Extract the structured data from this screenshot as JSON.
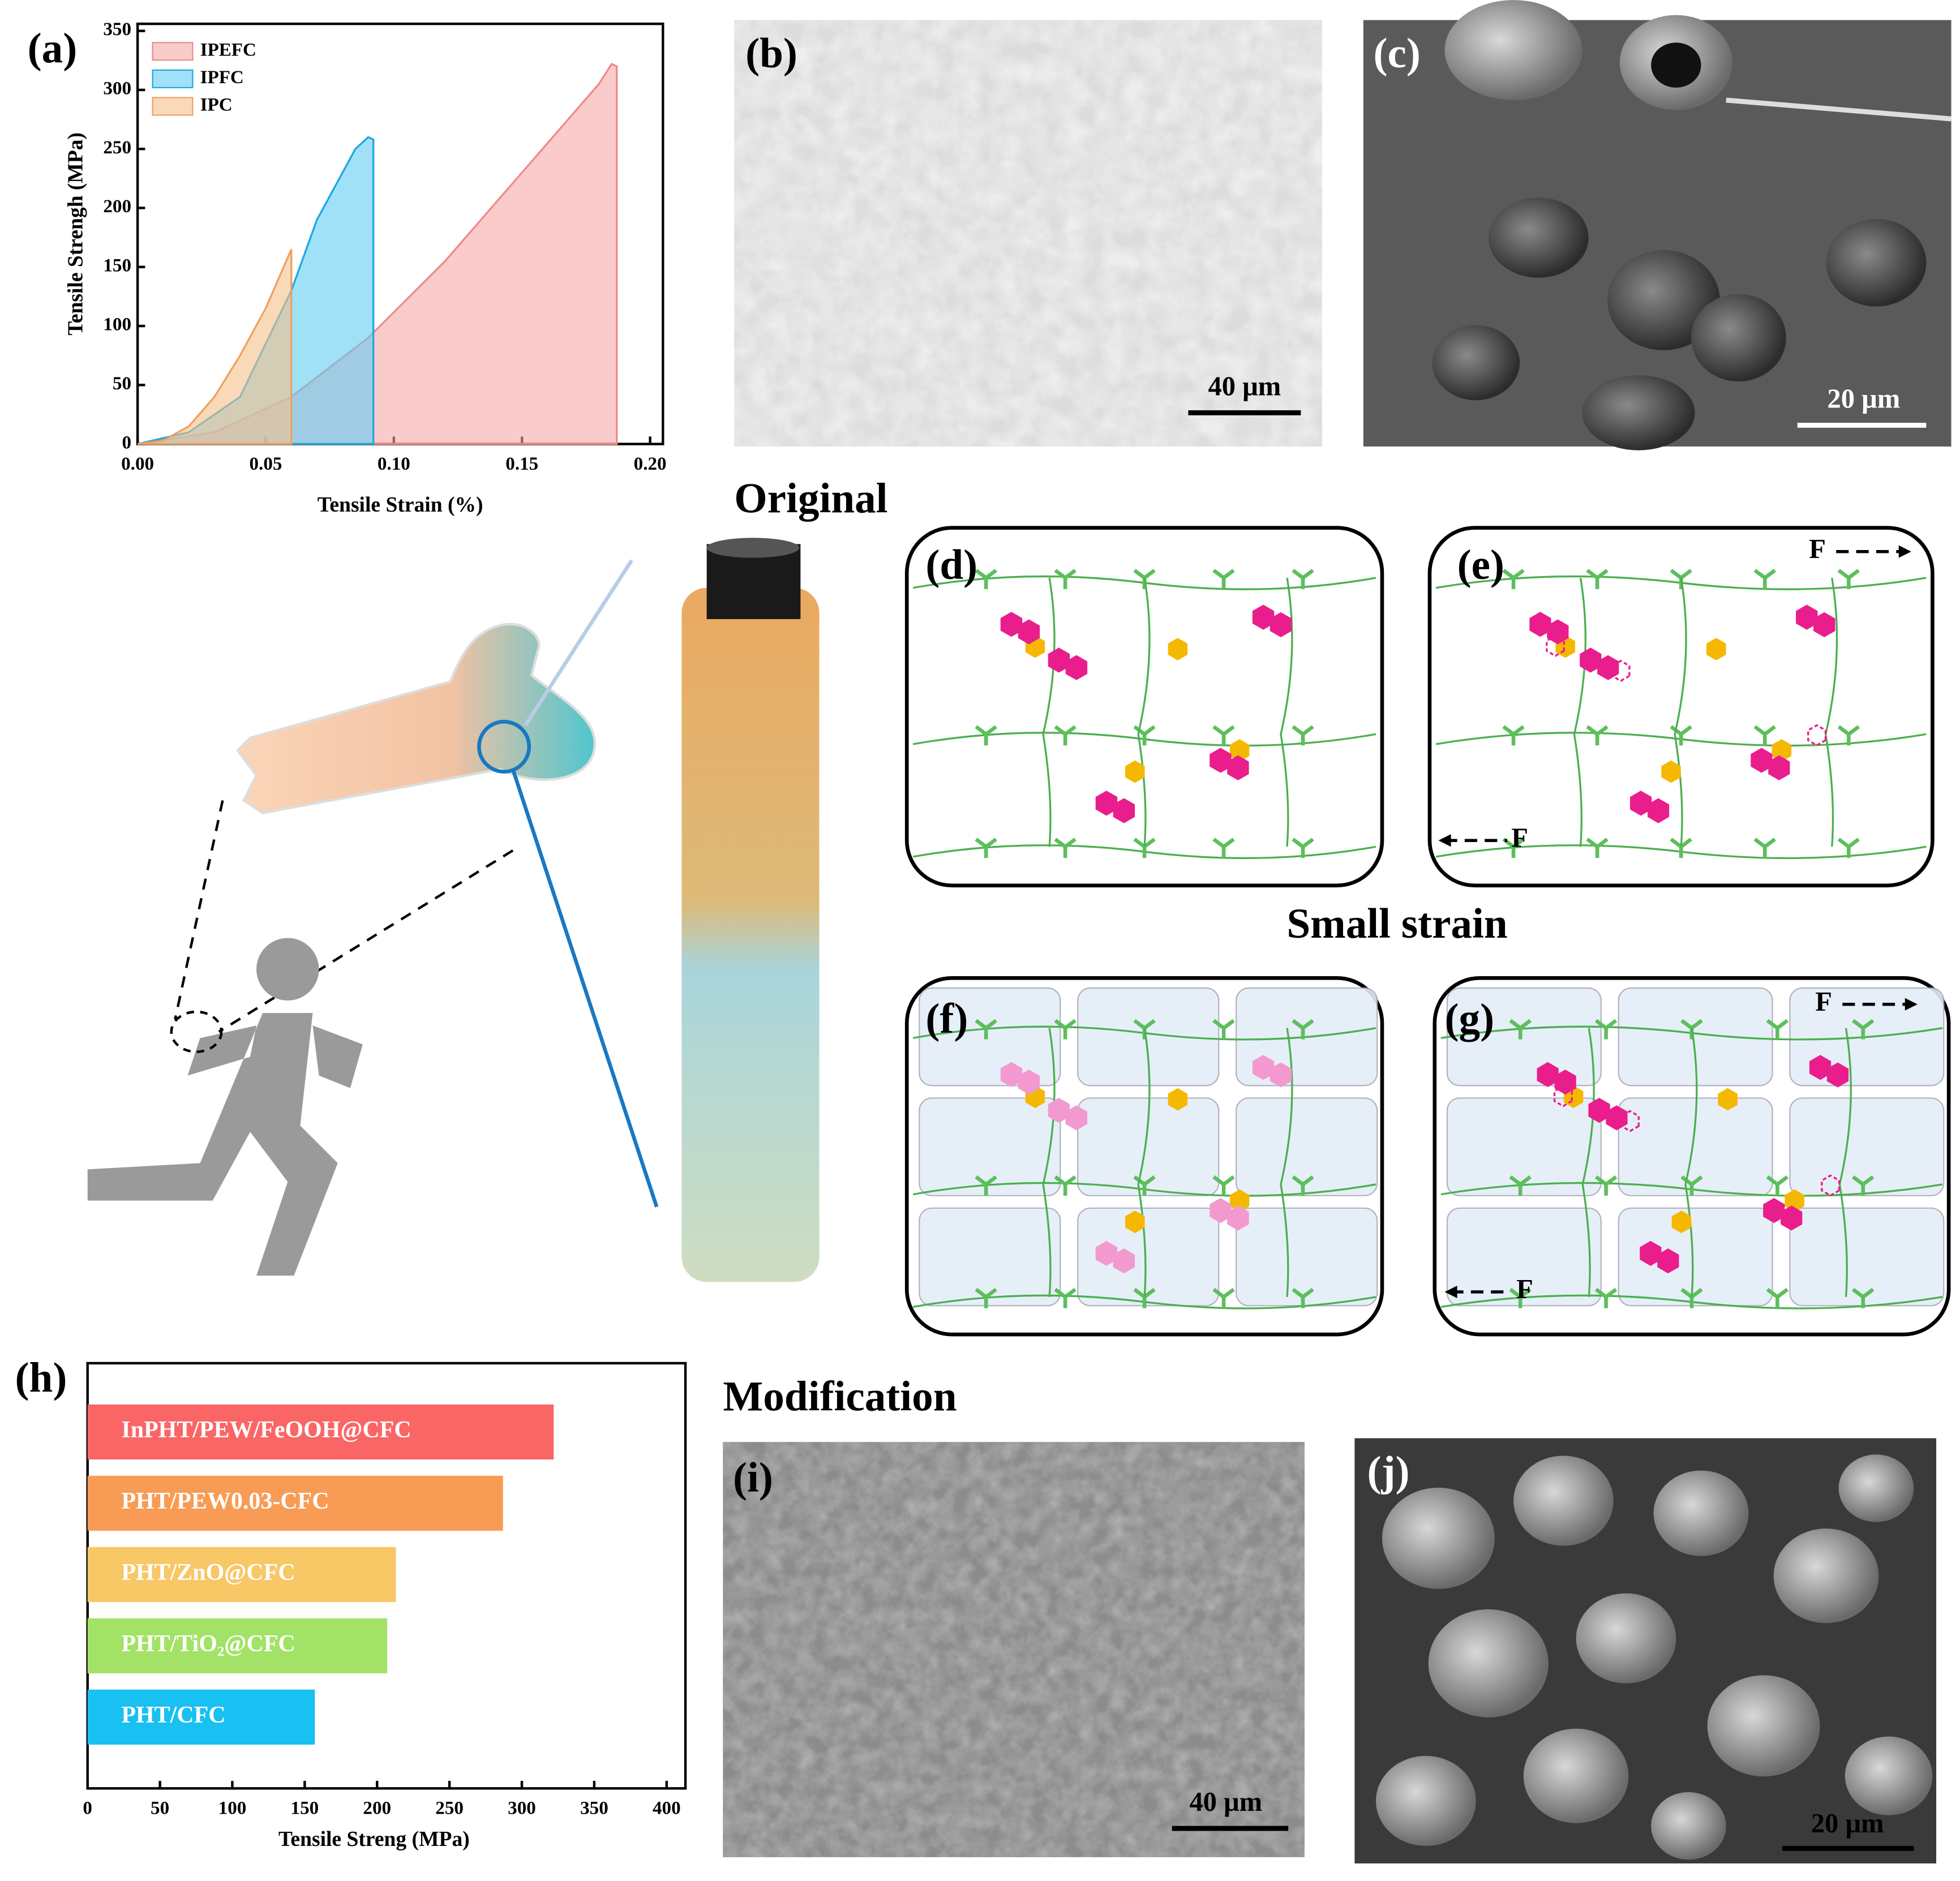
{
  "chart_data": [
    {
      "type": "area",
      "y_label": "Tensile Strengh (MPa)",
      "x_label": "Tensile Strain (%)",
      "xlim": [
        0,
        0.205
      ],
      "ylim": [
        0,
        356
      ],
      "xticks": [
        {
          "value": 0,
          "label": "0.00"
        },
        {
          "value": 0.05,
          "label": "0.05"
        },
        {
          "value": 0.1,
          "label": "0.10"
        },
        {
          "value": 0.15,
          "label": "0.15"
        },
        {
          "value": 0.2,
          "label": "0.20"
        }
      ],
      "yticks": [
        0,
        50,
        100,
        150,
        200,
        250,
        300,
        350
      ],
      "legend": "upper left",
      "series": [
        {
          "name": "IPEFC",
          "color": "#f7a8a8",
          "edge": "#f08a8a",
          "x": [
            0,
            0.03,
            0.06,
            0.09,
            0.12,
            0.15,
            0.18,
            0.185,
            0.187,
            0.187
          ],
          "values": [
            0,
            10,
            40,
            90,
            155,
            230,
            305,
            322,
            320,
            0
          ]
        },
        {
          "name": "IPFC",
          "color": "#62cdf3",
          "edge": "#1aa9e0",
          "x": [
            0,
            0.02,
            0.04,
            0.06,
            0.07,
            0.08,
            0.085,
            0.09,
            0.092,
            0.092
          ],
          "values": [
            0,
            10,
            40,
            130,
            190,
            230,
            250,
            260,
            258,
            0
          ]
        },
        {
          "name": "IPC",
          "color": "#f7c08a",
          "edge": "#eea060",
          "x": [
            0,
            0.01,
            0.02,
            0.03,
            0.04,
            0.05,
            0.058,
            0.06,
            0.06
          ],
          "values": [
            0,
            3,
            15,
            40,
            75,
            115,
            155,
            165,
            0
          ]
        }
      ]
    },
    {
      "type": "barh",
      "x_label": "Tensile Streng (MPa)",
      "xlim": [
        0,
        413
      ],
      "xticks": [
        0,
        50,
        100,
        150,
        200,
        250,
        300,
        350,
        400
      ],
      "categories": [
        "InPHT/PEW/FeOOH@CFC",
        "PHT/PEW0.03-CFC",
        "PHT/ZnO@CFC",
        "PHT/TiO₂@CFC",
        "PHT/CFC"
      ],
      "values": [
        322,
        287,
        213,
        207,
        157
      ],
      "colors": [
        "#fa6666",
        "#f89c55",
        "#f8c766",
        "#a2e367",
        "#19c0f2"
      ]
    }
  ],
  "panel_labels": [
    "(a)",
    "(b)",
    "(c)",
    "(d)",
    "(e)",
    "(f)",
    "(g)",
    "(h)",
    "(i)",
    "(j)"
  ],
  "headings": [
    "Original",
    "Small strain",
    "Modification"
  ],
  "scale_bars": [
    "40 μm",
    "20 μm",
    "40 μm",
    "20 μm"
  ],
  "force_labels": [
    "F",
    "F",
    "F",
    "F"
  ]
}
